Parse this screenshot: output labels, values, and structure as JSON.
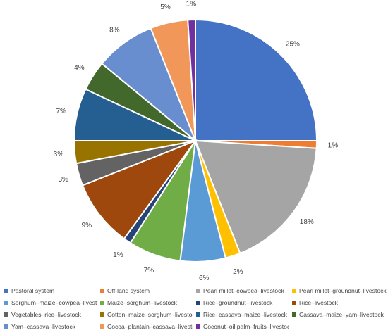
{
  "chart_data": {
    "type": "pie",
    "title": "",
    "start_angle_deg": 0,
    "direction": "clockwise",
    "legend_position": "bottom",
    "slices": [
      {
        "name": "Pastoral system",
        "value": 25,
        "label": "25%",
        "color": "#4472C4"
      },
      {
        "name": "Off-land system",
        "value": 1,
        "label": "1%",
        "color": "#ED7D31"
      },
      {
        "name": "Pearl millet–cowpea–livestock",
        "value": 18,
        "label": "18%",
        "color": "#A5A5A5"
      },
      {
        "name": "Pearl millet–groundnut–livestock",
        "value": 2,
        "label": "2%",
        "color": "#FFC000"
      },
      {
        "name": "Sorghum–maize–cowpea–livestock",
        "value": 6,
        "label": "6%",
        "color": "#5B9BD5"
      },
      {
        "name": "Maize–sorghum–livestock",
        "value": 7,
        "label": "7%",
        "color": "#70AD47"
      },
      {
        "name": "Rice–groundnut–livestock",
        "value": 1,
        "label": "1%",
        "color": "#264478"
      },
      {
        "name": "Rice–livestock",
        "value": 9,
        "label": "9%",
        "color": "#9E480E"
      },
      {
        "name": "Vegetables–rice–livestock",
        "value": 3,
        "label": "3%",
        "color": "#636363"
      },
      {
        "name": "Cotton–maize–sorghum–livestock",
        "value": 3,
        "label": "3%",
        "color": "#997300"
      },
      {
        "name": "Rice–cassava–maize–livestock",
        "value": 7,
        "label": "7%",
        "color": "#255E91"
      },
      {
        "name": "Cassava–maize–yam–livestock",
        "value": 4,
        "label": "4%",
        "color": "#43682B"
      },
      {
        "name": "Yam–cassava–livestock",
        "value": 8,
        "label": "8%",
        "color": "#698ED0"
      },
      {
        "name": "Cocoa–plantain–cassava–livestock",
        "value": 5,
        "label": "5%",
        "color": "#F1975A"
      },
      {
        "name": "Coconut–oil palm–fruits–livestock",
        "value": 1,
        "label": "1%",
        "color": "#7030A0"
      }
    ]
  }
}
